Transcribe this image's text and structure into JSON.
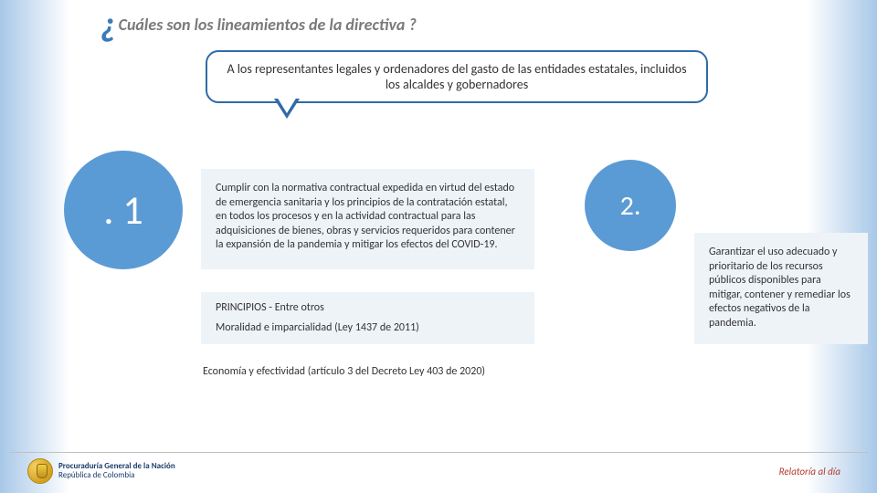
{
  "title": {
    "question_mark": "¿",
    "text": "Cuáles son los lineamientos de la directiva ?"
  },
  "callout": "A los representantes legales y ordenadores del gasto de las entidades estatales, incluidos los alcaldes y gobernadores",
  "items": {
    "i1": {
      "num": ". 1",
      "body": "Cumplir con la normativa contractual expedida en virtud del estado de emergencia sanitaria y los principios de la contratación estatal, en todos los procesos y en la actividad contractual para las adquisiciones de bienes, obras y servicios requeridos para contener la expansión de la pandemia y mitigar los efectos del COVID-19.",
      "principios_label": "PRINCIPIOS  - Entre otros",
      "moralidad": "Moralidad e imparcialidad (Ley 1437 de 2011)",
      "economia": "Economía y efectividad (artículo 3 del Decreto Ley 403 de 2020)"
    },
    "i2": {
      "num": "2.",
      "body": "Garantizar el uso adecuado y prioritario de los recursos públicos disponibles para mitigar, contener y remediar los efectos negativos de la pandemia."
    }
  },
  "footer": {
    "org_line1": "Procuraduría General de la Nación",
    "org_line2": "República de Colombia",
    "relatoria": "Relatoría al día"
  }
}
